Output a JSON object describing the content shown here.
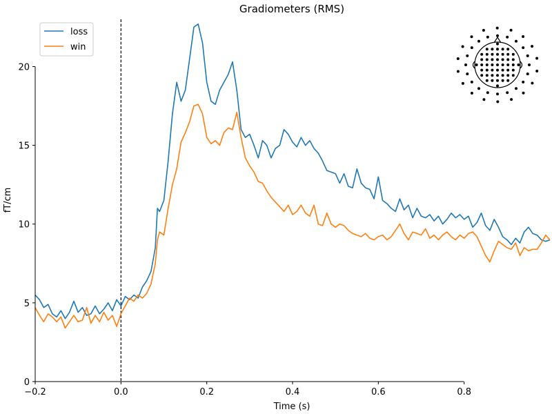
{
  "chart_data": {
    "type": "line",
    "title": "Gradiometers (RMS)",
    "xlabel": "Time (s)",
    "ylabel": "fT/cm",
    "xlim": [
      -0.2,
      1.0
    ],
    "ylim": [
      0,
      23
    ],
    "xticks": [
      -0.2,
      0.0,
      0.2,
      0.4,
      0.6,
      0.8
    ],
    "xtick_labels": [
      "−0.2",
      "0.0",
      "0.2",
      "0.4",
      "0.6",
      "0.8"
    ],
    "yticks": [
      0,
      5,
      10,
      15,
      20
    ],
    "ytick_labels": [
      "0",
      "5",
      "10",
      "15",
      "20"
    ],
    "grid": false,
    "legend_position": "top-left",
    "event_line": {
      "x": 0.0,
      "style": "dashed",
      "color": "#000000"
    },
    "series": [
      {
        "name": "loss",
        "color": "#1f77b4",
        "points": [
          [
            -0.2,
            5.5
          ],
          [
            -0.19,
            5.2
          ],
          [
            -0.18,
            4.7
          ],
          [
            -0.17,
            4.9
          ],
          [
            -0.16,
            4.3
          ],
          [
            -0.15,
            4.1
          ],
          [
            -0.14,
            4.5
          ],
          [
            -0.13,
            4.0
          ],
          [
            -0.12,
            4.4
          ],
          [
            -0.11,
            5.1
          ],
          [
            -0.1,
            4.4
          ],
          [
            -0.09,
            4.7
          ],
          [
            -0.08,
            4.2
          ],
          [
            -0.07,
            4.3
          ],
          [
            -0.06,
            4.8
          ],
          [
            -0.05,
            4.3
          ],
          [
            -0.04,
            4.6
          ],
          [
            -0.03,
            5.0
          ],
          [
            -0.02,
            4.5
          ],
          [
            -0.01,
            5.2
          ],
          [
            0.0,
            4.8
          ],
          [
            0.01,
            5.4
          ],
          [
            0.02,
            5.2
          ],
          [
            0.03,
            5.5
          ],
          [
            0.04,
            5.3
          ],
          [
            0.05,
            6.0
          ],
          [
            0.06,
            6.4
          ],
          [
            0.07,
            7.0
          ],
          [
            0.08,
            8.5
          ],
          [
            0.085,
            11.0
          ],
          [
            0.09,
            10.8
          ],
          [
            0.1,
            11.5
          ],
          [
            0.11,
            14.0
          ],
          [
            0.12,
            17.0
          ],
          [
            0.13,
            19.0
          ],
          [
            0.14,
            17.8
          ],
          [
            0.15,
            18.5
          ],
          [
            0.16,
            20.5
          ],
          [
            0.17,
            22.5
          ],
          [
            0.18,
            22.7
          ],
          [
            0.19,
            21.5
          ],
          [
            0.2,
            19.0
          ],
          [
            0.21,
            17.8
          ],
          [
            0.22,
            17.6
          ],
          [
            0.23,
            18.5
          ],
          [
            0.24,
            19.0
          ],
          [
            0.25,
            19.5
          ],
          [
            0.26,
            20.3
          ],
          [
            0.27,
            18.5
          ],
          [
            0.28,
            16.0
          ],
          [
            0.29,
            15.5
          ],
          [
            0.3,
            15.7
          ],
          [
            0.31,
            15.0
          ],
          [
            0.32,
            14.2
          ],
          [
            0.33,
            15.3
          ],
          [
            0.34,
            15.0
          ],
          [
            0.35,
            14.2
          ],
          [
            0.36,
            14.8
          ],
          [
            0.37,
            15.0
          ],
          [
            0.38,
            16.0
          ],
          [
            0.39,
            15.7
          ],
          [
            0.4,
            15.2
          ],
          [
            0.41,
            14.9
          ],
          [
            0.42,
            15.5
          ],
          [
            0.43,
            15.0
          ],
          [
            0.44,
            15.3
          ],
          [
            0.45,
            14.8
          ],
          [
            0.46,
            14.5
          ],
          [
            0.47,
            14.0
          ],
          [
            0.48,
            13.4
          ],
          [
            0.49,
            13.3
          ],
          [
            0.5,
            13.2
          ],
          [
            0.51,
            12.6
          ],
          [
            0.52,
            13.2
          ],
          [
            0.53,
            12.4
          ],
          [
            0.54,
            12.3
          ],
          [
            0.55,
            13.5
          ],
          [
            0.56,
            12.6
          ],
          [
            0.57,
            12.3
          ],
          [
            0.58,
            12.2
          ],
          [
            0.59,
            11.6
          ],
          [
            0.6,
            13.0
          ],
          [
            0.61,
            11.5
          ],
          [
            0.62,
            11.3
          ],
          [
            0.63,
            11.0
          ],
          [
            0.64,
            10.8
          ],
          [
            0.65,
            11.6
          ],
          [
            0.66,
            10.9
          ],
          [
            0.67,
            11.2
          ],
          [
            0.68,
            10.4
          ],
          [
            0.69,
            11.0
          ],
          [
            0.7,
            10.5
          ],
          [
            0.71,
            10.4
          ],
          [
            0.72,
            10.6
          ],
          [
            0.73,
            10.2
          ],
          [
            0.74,
            10.5
          ],
          [
            0.75,
            10.0
          ],
          [
            0.76,
            10.3
          ],
          [
            0.77,
            10.7
          ],
          [
            0.78,
            10.4
          ],
          [
            0.79,
            10.6
          ],
          [
            0.8,
            10.3
          ],
          [
            0.81,
            10.5
          ],
          [
            0.82,
            9.8
          ],
          [
            0.83,
            10.1
          ],
          [
            0.84,
            10.7
          ],
          [
            0.85,
            9.9
          ],
          [
            0.86,
            9.6
          ],
          [
            0.87,
            10.3
          ],
          [
            0.88,
            9.8
          ],
          [
            0.89,
            9.2
          ],
          [
            0.9,
            9.0
          ],
          [
            0.91,
            8.7
          ],
          [
            0.92,
            9.1
          ],
          [
            0.93,
            8.8
          ],
          [
            0.94,
            9.5
          ],
          [
            0.95,
            9.8
          ],
          [
            0.96,
            9.4
          ],
          [
            0.97,
            9.3
          ],
          [
            0.98,
            9.0
          ],
          [
            0.99,
            8.9
          ],
          [
            1.0,
            9.0
          ]
        ]
      },
      {
        "name": "win",
        "color": "#ff7f0e",
        "points": [
          [
            -0.2,
            4.7
          ],
          [
            -0.19,
            4.2
          ],
          [
            -0.18,
            3.8
          ],
          [
            -0.17,
            4.3
          ],
          [
            -0.16,
            4.1
          ],
          [
            -0.15,
            3.8
          ],
          [
            -0.14,
            4.1
          ],
          [
            -0.13,
            3.4
          ],
          [
            -0.12,
            3.8
          ],
          [
            -0.11,
            4.2
          ],
          [
            -0.1,
            3.8
          ],
          [
            -0.09,
            3.9
          ],
          [
            -0.08,
            4.7
          ],
          [
            -0.07,
            3.7
          ],
          [
            -0.06,
            4.2
          ],
          [
            -0.05,
            3.8
          ],
          [
            -0.04,
            4.4
          ],
          [
            -0.03,
            3.9
          ],
          [
            -0.02,
            4.2
          ],
          [
            -0.01,
            3.5
          ],
          [
            0.0,
            4.3
          ],
          [
            0.01,
            4.8
          ],
          [
            0.02,
            5.3
          ],
          [
            0.03,
            5.1
          ],
          [
            0.04,
            5.5
          ],
          [
            0.05,
            5.3
          ],
          [
            0.06,
            5.6
          ],
          [
            0.07,
            6.2
          ],
          [
            0.08,
            7.5
          ],
          [
            0.085,
            9.0
          ],
          [
            0.09,
            9.5
          ],
          [
            0.1,
            9.3
          ],
          [
            0.11,
            11.0
          ],
          [
            0.12,
            12.5
          ],
          [
            0.13,
            13.5
          ],
          [
            0.14,
            15.2
          ],
          [
            0.15,
            15.8
          ],
          [
            0.16,
            16.5
          ],
          [
            0.17,
            17.5
          ],
          [
            0.18,
            17.6
          ],
          [
            0.19,
            17.0
          ],
          [
            0.2,
            15.5
          ],
          [
            0.21,
            15.1
          ],
          [
            0.22,
            15.3
          ],
          [
            0.23,
            15.0
          ],
          [
            0.24,
            15.8
          ],
          [
            0.25,
            16.1
          ],
          [
            0.26,
            16.0
          ],
          [
            0.27,
            17.1
          ],
          [
            0.28,
            15.5
          ],
          [
            0.29,
            14.2
          ],
          [
            0.3,
            13.7
          ],
          [
            0.31,
            13.3
          ],
          [
            0.32,
            12.7
          ],
          [
            0.33,
            12.6
          ],
          [
            0.34,
            12.1
          ],
          [
            0.35,
            11.7
          ],
          [
            0.36,
            11.4
          ],
          [
            0.37,
            11.1
          ],
          [
            0.38,
            10.8
          ],
          [
            0.39,
            11.2
          ],
          [
            0.4,
            10.6
          ],
          [
            0.41,
            10.8
          ],
          [
            0.42,
            11.2
          ],
          [
            0.43,
            10.7
          ],
          [
            0.44,
            10.5
          ],
          [
            0.45,
            11.2
          ],
          [
            0.46,
            10.0
          ],
          [
            0.47,
            9.9
          ],
          [
            0.48,
            10.7
          ],
          [
            0.49,
            10.0
          ],
          [
            0.5,
            9.8
          ],
          [
            0.51,
            10.0
          ],
          [
            0.52,
            9.9
          ],
          [
            0.53,
            9.6
          ],
          [
            0.54,
            9.4
          ],
          [
            0.55,
            9.3
          ],
          [
            0.56,
            9.2
          ],
          [
            0.57,
            9.4
          ],
          [
            0.58,
            9.1
          ],
          [
            0.59,
            9.0
          ],
          [
            0.6,
            9.2
          ],
          [
            0.61,
            9.3
          ],
          [
            0.62,
            9.0
          ],
          [
            0.63,
            9.2
          ],
          [
            0.64,
            9.6
          ],
          [
            0.65,
            10.0
          ],
          [
            0.66,
            9.4
          ],
          [
            0.67,
            9.0
          ],
          [
            0.68,
            9.5
          ],
          [
            0.69,
            9.4
          ],
          [
            0.7,
            9.3
          ],
          [
            0.71,
            9.7
          ],
          [
            0.72,
            9.1
          ],
          [
            0.73,
            9.3
          ],
          [
            0.74,
            9.0
          ],
          [
            0.75,
            9.3
          ],
          [
            0.76,
            9.5
          ],
          [
            0.77,
            9.2
          ],
          [
            0.78,
            9.0
          ],
          [
            0.79,
            9.3
          ],
          [
            0.8,
            9.1
          ],
          [
            0.81,
            9.4
          ],
          [
            0.82,
            9.5
          ],
          [
            0.83,
            9.2
          ],
          [
            0.84,
            8.6
          ],
          [
            0.85,
            8.0
          ],
          [
            0.86,
            7.6
          ],
          [
            0.87,
            8.3
          ],
          [
            0.88,
            8.9
          ],
          [
            0.89,
            8.7
          ],
          [
            0.9,
            8.5
          ],
          [
            0.91,
            8.4
          ],
          [
            0.92,
            8.8
          ],
          [
            0.93,
            8.0
          ],
          [
            0.94,
            8.5
          ],
          [
            0.95,
            8.3
          ],
          [
            0.96,
            8.4
          ],
          [
            0.97,
            8.4
          ],
          [
            0.98,
            8.8
          ],
          [
            0.99,
            9.3
          ],
          [
            1.0,
            9.0
          ]
        ]
      }
    ]
  },
  "sensor_inset": {
    "description_icon": "sensor-layout-icon",
    "dot_color": "#000000"
  }
}
